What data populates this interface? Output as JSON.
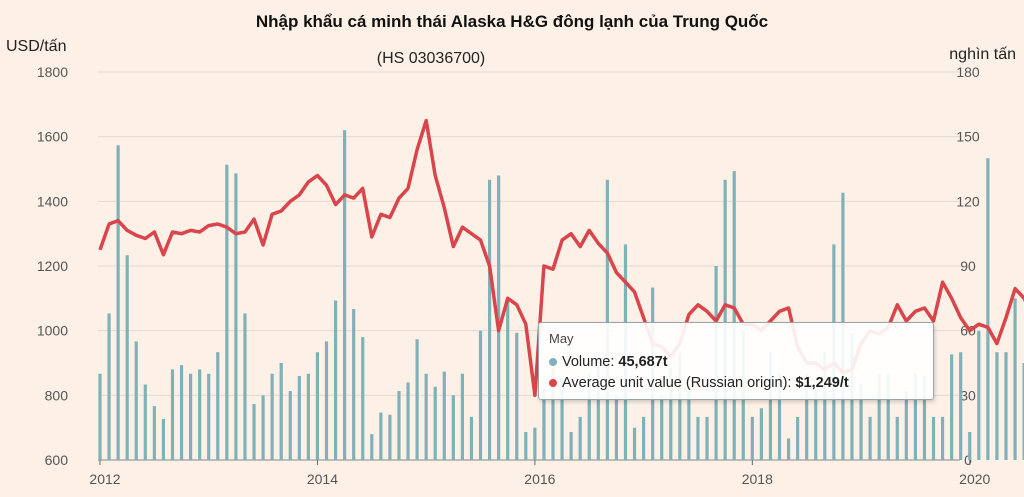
{
  "chart_data": {
    "type": "bar+line",
    "title": "Nhập khẩu cá minh thái Alaska H&G đông lạnh của Trung Quốc",
    "subtitle": "(HS 03036700)",
    "ylabel_left": "USD/tấn",
    "ylabel_right": "nghìn tấn",
    "ylim_left": [
      600,
      1800
    ],
    "ylim_right": [
      0,
      180
    ],
    "yticks_left": [
      "600",
      "800",
      "1000",
      "1200",
      "1400",
      "1600",
      "1800"
    ],
    "yticks_right": [
      "0",
      "30",
      "60",
      "90",
      "120",
      "150",
      "180"
    ],
    "xticks": [
      "2012",
      "2014",
      "2016",
      "2018",
      "2020"
    ],
    "x_start": "2012-01",
    "grid": "horizontal",
    "colors": {
      "volume": "#7fb1b8",
      "unit_value": "#d9454a",
      "background": "#fdf1e7",
      "grid": "#e2d8d0"
    },
    "series": [
      {
        "name": "Volume",
        "kind": "bar",
        "axis": "right",
        "values": [
          40,
          68,
          146,
          95,
          55,
          35,
          25,
          19,
          42,
          44,
          40,
          42,
          40,
          50,
          137,
          133,
          68,
          26,
          30,
          40,
          45,
          32,
          39,
          40,
          50,
          55,
          74,
          153,
          70,
          57,
          12,
          22,
          21,
          32,
          36,
          56,
          40,
          34,
          41,
          30,
          40,
          20,
          60,
          130,
          132,
          75,
          59,
          13,
          15,
          33,
          43,
          38,
          13,
          20,
          40,
          50,
          130,
          30,
          100,
          15,
          20,
          80,
          30,
          43,
          50,
          32,
          20,
          20,
          90,
          130,
          134,
          60,
          20,
          24,
          50,
          40,
          10,
          20,
          40,
          32,
          50,
          100,
          124,
          59,
          35,
          20,
          40,
          40,
          20,
          32,
          40,
          39,
          20,
          20,
          49,
          50,
          13,
          60,
          140,
          50,
          50,
          75,
          45,
          30,
          60,
          80,
          61,
          25,
          20,
          30,
          50,
          60,
          30,
          20,
          50,
          40,
          20,
          20,
          20,
          80,
          65,
          70,
          100,
          40,
          140,
          160,
          20,
          32,
          37,
          60,
          20,
          20,
          20,
          20,
          32,
          30,
          30,
          50,
          50,
          30,
          15,
          15,
          20,
          20,
          18,
          5,
          3,
          9,
          15,
          40,
          46
        ]
      },
      {
        "name": "Average unit value (Russian origin)",
        "kind": "line",
        "axis": "left",
        "values": [
          1250,
          1330,
          1340,
          1310,
          1295,
          1285,
          1305,
          1235,
          1305,
          1300,
          1310,
          1305,
          1325,
          1330,
          1320,
          1300,
          1305,
          1345,
          1265,
          1360,
          1370,
          1400,
          1420,
          1460,
          1480,
          1450,
          1390,
          1420,
          1410,
          1440,
          1290,
          1360,
          1350,
          1410,
          1440,
          1560,
          1650,
          1480,
          1380,
          1260,
          1320,
          1300,
          1280,
          1200,
          1000,
          1100,
          1080,
          1020,
          800,
          1200,
          1190,
          1280,
          1300,
          1260,
          1310,
          1270,
          1240,
          1180,
          1150,
          1120,
          1040,
          960,
          950,
          920,
          960,
          1050,
          1080,
          1060,
          1030,
          1080,
          1070,
          1020,
          1020,
          1000,
          1030,
          1060,
          1070,
          950,
          900,
          900,
          880,
          900,
          870,
          880,
          960,
          1000,
          990,
          1010,
          1080,
          1030,
          1060,
          1070,
          1030,
          1150,
          1100,
          1040,
          1000,
          1020,
          1010,
          960,
          1040,
          1130,
          1100,
          1040,
          990,
          1010,
          980,
          1040,
          1040,
          1050,
          1060,
          1080,
          1110,
          1160,
          1150,
          1070,
          1090,
          1100,
          1110,
          1180,
          1280,
          1300,
          1240,
          1160,
          1330,
          1350,
          1320,
          1370,
          1440,
          1440,
          1480,
          1420,
          1310,
          1280,
          1270,
          1200,
          1240,
          1200,
          1170,
          1150,
          1140,
          1100,
          1080,
          1060,
          1050,
          1100,
          1130,
          1150,
          1100,
          1060,
          1249
        ]
      }
    ],
    "tooltip": {
      "month": "May",
      "volume_label": "Volume: ",
      "volume_value": "45,687t",
      "price_label": "Average unit value (Russian origin): ",
      "price_value": "$1,249/t"
    }
  }
}
